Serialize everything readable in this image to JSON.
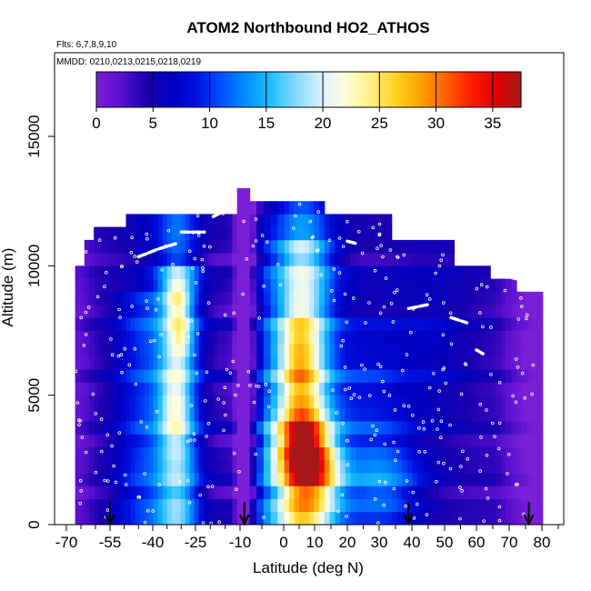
{
  "chart_data": {
    "type": "heatmap",
    "title": "ATOM2 Northbound HO2_ATHOS",
    "subtitle_flights": "Flts: 6,7,8,9,10",
    "subtitle_dates": "MMDD: 0210,0213,0215,0218,0219",
    "xlabel": "Latitude (deg N)",
    "ylabel": "Altitude (m)",
    "xlim": [
      -70,
      85
    ],
    "ylim": [
      0,
      18000
    ],
    "x_ticks": [
      -70,
      -55,
      -40,
      -25,
      -10,
      0,
      10,
      20,
      30,
      40,
      50,
      60,
      70,
      80
    ],
    "x_tick_labels": [
      "-70",
      "-55",
      "-40",
      "-25",
      "-10",
      "0",
      "10",
      "20",
      "30",
      "40",
      "50",
      "60",
      "70",
      "80"
    ],
    "y_ticks": [
      0,
      5000,
      10000,
      15000
    ],
    "y_tick_labels": [
      "0",
      "5000",
      "10000",
      "15000"
    ],
    "colorbar": {
      "range": [
        0,
        37.5
      ],
      "ticks": [
        0,
        5,
        10,
        15,
        20,
        25,
        30,
        35
      ],
      "tick_labels": [
        "0",
        "5",
        "10",
        "15",
        "20",
        "25",
        "30",
        "35"
      ],
      "colors": [
        "#7a1fd8",
        "#5a10d0",
        "#1a00b0",
        "#0000c0",
        "#0010e0",
        "#0050ff",
        "#0090ff",
        "#20c0ff",
        "#8ad8ff",
        "#d8f2ff",
        "#ffffd8",
        "#fff080",
        "#ffd020",
        "#ffa000",
        "#ff6000",
        "#ff1c00",
        "#e00000",
        "#a81818"
      ]
    },
    "profile_latitudes": [
      -55,
      -9,
      39,
      76
    ],
    "field_description_levels": {
      "altitudes": [
        250,
        750,
        1250,
        1750,
        2250,
        2750,
        3250,
        3750,
        4250,
        4750,
        5250,
        5750,
        6250,
        6750,
        7250,
        7750,
        8250,
        8750,
        9250,
        9750,
        10250,
        10750,
        11250,
        11750,
        12250,
        12750
      ]
    }
  }
}
